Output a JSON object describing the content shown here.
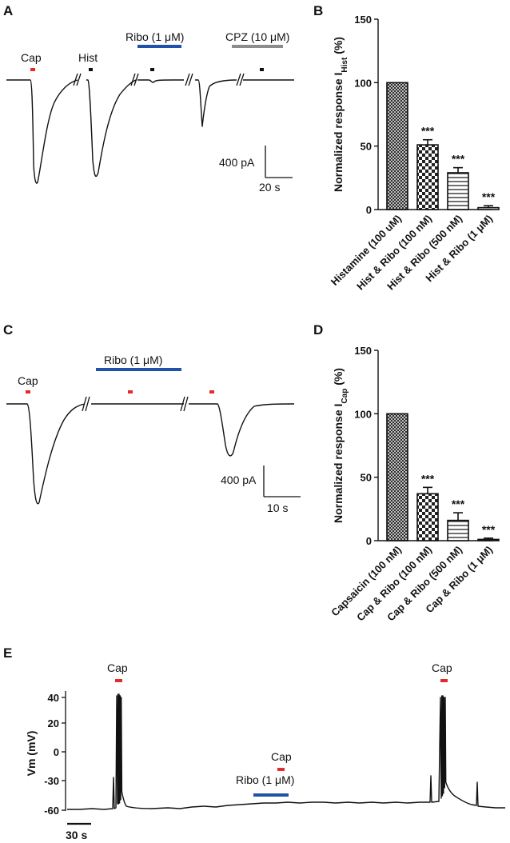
{
  "panels": {
    "A": {
      "label": "A",
      "cap": "Cap",
      "hist": "Hist",
      "ribo": "Ribo (1 μM)",
      "cpz": "CPZ (10 μM)",
      "scale_y": "400 pA",
      "scale_x": "20 s"
    },
    "C": {
      "label": "C",
      "cap": "Cap",
      "ribo": "Ribo (1 μM)",
      "scale_y": "400 pA",
      "scale_x": "10 s"
    },
    "E": {
      "label": "E",
      "cap1": "Cap",
      "cap2": "Cap",
      "cap3": "Cap",
      "ribo": "Ribo (1 μM)",
      "ylabel": "Vm (mV)",
      "yticks": [
        "40",
        "20",
        "0",
        "-30",
        "-60"
      ],
      "scale_x": "30 s"
    }
  },
  "colors": {
    "cap_bar": "#e32b2b",
    "ribo_bar": "#2151a8",
    "cpz_bar": "#8c8c8c",
    "trace": "#111111"
  },
  "chart_data": [
    {
      "panel": "B",
      "type": "bar",
      "categories": [
        "Histamine (100 uM)",
        "Hist & Ribo (100 nM)",
        "Hist & Ribo (500 nM)",
        "Hist & Ribo (1 μM)"
      ],
      "values": [
        100,
        51,
        29,
        1.5
      ],
      "errors": [
        0,
        4,
        4,
        1.5
      ],
      "significance": [
        "",
        "***",
        "***",
        "***"
      ],
      "fill_patterns": [
        "fine-crosshatch",
        "checker",
        "horizontal-lines",
        "none"
      ],
      "ylabel_main": "Normalized response I",
      "ylabel_sub": "Hist",
      "ylabel_unit": " (%)",
      "ylim": [
        0,
        150
      ],
      "yticks": [
        0,
        50,
        100,
        150
      ]
    },
    {
      "panel": "D",
      "type": "bar",
      "categories": [
        "Capsaicin (100 nM)",
        "Cap & Ribo (100 nM)",
        "Cap & Ribo (500 nM)",
        "Cap & Ribo (1 μM)"
      ],
      "values": [
        100,
        37,
        16,
        1
      ],
      "errors": [
        0,
        5,
        6,
        1
      ],
      "significance": [
        "",
        "***",
        "***",
        "***"
      ],
      "fill_patterns": [
        "fine-crosshatch",
        "checker",
        "horizontal-lines",
        "none"
      ],
      "ylabel_main": "Normalized response I",
      "ylabel_sub": "Cap",
      "ylabel_unit": " (%)",
      "ylim": [
        0,
        150
      ],
      "yticks": [
        0,
        50,
        100,
        150
      ]
    }
  ]
}
